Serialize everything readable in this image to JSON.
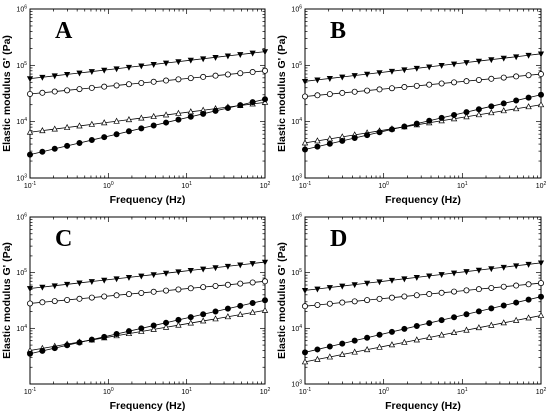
{
  "figure": {
    "colors": {
      "background": "#ffffff",
      "ink": "#000000",
      "hollow": "#ffffff"
    }
  },
  "chart_data": [
    {
      "type": "line",
      "panel_label": "A",
      "xlabel": "Frequency (Hz)",
      "ylabel": "Elastic modulus G' (Pa)",
      "x_scale": "log",
      "y_scale": "log",
      "xlim": [
        0.1,
        100
      ],
      "ylim": [
        1000,
        1000000
      ],
      "x_ticks": [
        {
          "base": "10",
          "exp": "-1"
        },
        {
          "base": "10",
          "exp": "0"
        },
        {
          "base": "10",
          "exp": "1"
        },
        {
          "base": "10",
          "exp": "2"
        }
      ],
      "y_ticks": [
        {
          "base": "10",
          "exp": "3"
        },
        {
          "base": "10",
          "exp": "4"
        },
        {
          "base": "10",
          "exp": "5"
        },
        {
          "base": "10",
          "exp": "6"
        }
      ],
      "grid": false,
      "legend": "none",
      "series": [
        {
          "marker": "triangle-down-filled",
          "x_start": 0.1,
          "x_end": 100,
          "points": 20,
          "y_start": 58000,
          "y_end": 175000
        },
        {
          "marker": "circle-open",
          "x_start": 0.1,
          "x_end": 100,
          "points": 20,
          "y_start": 31000,
          "y_end": 80000
        },
        {
          "marker": "triangle-up-open",
          "x_start": 0.1,
          "x_end": 100,
          "points": 20,
          "y_start": 6500,
          "y_end": 22000
        },
        {
          "marker": "circle-filled",
          "x_start": 0.1,
          "x_end": 100,
          "points": 20,
          "y_start": 2600,
          "y_end": 25000
        }
      ]
    },
    {
      "type": "line",
      "panel_label": "B",
      "xlabel": "Frequency (Hz)",
      "ylabel": "Elastic modulus G' (Pa)",
      "x_scale": "log",
      "y_scale": "log",
      "xlim": [
        0.1,
        100
      ],
      "ylim": [
        1000,
        1000000
      ],
      "x_ticks": [
        {
          "base": "10",
          "exp": "-1"
        },
        {
          "base": "10",
          "exp": "0"
        },
        {
          "base": "10",
          "exp": "1"
        },
        {
          "base": "10",
          "exp": "2"
        }
      ],
      "y_ticks": [
        {
          "base": "10",
          "exp": "3"
        },
        {
          "base": "10",
          "exp": "4"
        },
        {
          "base": "10",
          "exp": "5"
        },
        {
          "base": "10",
          "exp": "6"
        }
      ],
      "grid": false,
      "legend": "none",
      "series": [
        {
          "marker": "triangle-down-filled",
          "x_start": 0.1,
          "x_end": 100,
          "points": 20,
          "y_start": 52000,
          "y_end": 160000
        },
        {
          "marker": "circle-open",
          "x_start": 0.1,
          "x_end": 100,
          "points": 20,
          "y_start": 28000,
          "y_end": 70000
        },
        {
          "marker": "triangle-up-open",
          "x_start": 0.1,
          "x_end": 100,
          "points": 20,
          "y_start": 4200,
          "y_end": 20000
        },
        {
          "marker": "circle-filled",
          "x_start": 0.1,
          "x_end": 100,
          "points": 20,
          "y_start": 3200,
          "y_end": 30000
        }
      ]
    },
    {
      "type": "line",
      "panel_label": "C",
      "xlabel": "Frequency (Hz)",
      "ylabel": "Elastic modulus G' (Pa)",
      "x_scale": "log",
      "y_scale": "log",
      "xlim": [
        0.1,
        100
      ],
      "ylim": [
        1000,
        1000000
      ],
      "x_ticks": [
        {
          "base": "10",
          "exp": "-1"
        },
        {
          "base": "10",
          "exp": "0"
        },
        {
          "base": "10",
          "exp": "1"
        },
        {
          "base": "10",
          "exp": "2"
        }
      ],
      "y_ticks": [
        {
          "base": "10",
          "exp": "4"
        },
        {
          "base": "10",
          "exp": "5"
        },
        {
          "base": "10",
          "exp": "6"
        }
      ],
      "grid": false,
      "legend": "none",
      "series": [
        {
          "marker": "triangle-down-filled",
          "x_start": 0.1,
          "x_end": 100,
          "points": 20,
          "y_start": 52000,
          "y_end": 155000
        },
        {
          "marker": "circle-open",
          "x_start": 0.1,
          "x_end": 100,
          "points": 20,
          "y_start": 28000,
          "y_end": 70000
        },
        {
          "marker": "triangle-up-open",
          "x_start": 0.1,
          "x_end": 100,
          "points": 20,
          "y_start": 4000,
          "y_end": 21000
        },
        {
          "marker": "circle-filled",
          "x_start": 0.1,
          "x_end": 100,
          "points": 20,
          "y_start": 3500,
          "y_end": 32000
        }
      ]
    },
    {
      "type": "line",
      "panel_label": "D",
      "xlabel": "Frequency (Hz)",
      "ylabel": "Elastic modulus G' (Pa)",
      "x_scale": "log",
      "y_scale": "log",
      "xlim": [
        0.1,
        100
      ],
      "ylim": [
        1000,
        1000000
      ],
      "x_ticks": [
        {
          "base": "10",
          "exp": "-1"
        },
        {
          "base": "10",
          "exp": "0"
        },
        {
          "base": "10",
          "exp": "1"
        },
        {
          "base": "10",
          "exp": "2"
        }
      ],
      "y_ticks": [
        {
          "base": "10",
          "exp": "3"
        },
        {
          "base": "10",
          "exp": "4"
        },
        {
          "base": "10",
          "exp": "5"
        },
        {
          "base": "10",
          "exp": "6"
        }
      ],
      "grid": false,
      "legend": "none",
      "series": [
        {
          "marker": "triangle-down-filled",
          "x_start": 0.1,
          "x_end": 100,
          "points": 20,
          "y_start": 48000,
          "y_end": 150000
        },
        {
          "marker": "circle-open",
          "x_start": 0.1,
          "x_end": 100,
          "points": 20,
          "y_start": 25000,
          "y_end": 65000
        },
        {
          "marker": "circle-filled",
          "x_start": 0.1,
          "x_end": 100,
          "points": 20,
          "y_start": 3700,
          "y_end": 37000
        },
        {
          "marker": "triangle-up-open",
          "x_start": 0.1,
          "x_end": 100,
          "points": 20,
          "y_start": 2500,
          "y_end": 17000
        }
      ]
    }
  ]
}
